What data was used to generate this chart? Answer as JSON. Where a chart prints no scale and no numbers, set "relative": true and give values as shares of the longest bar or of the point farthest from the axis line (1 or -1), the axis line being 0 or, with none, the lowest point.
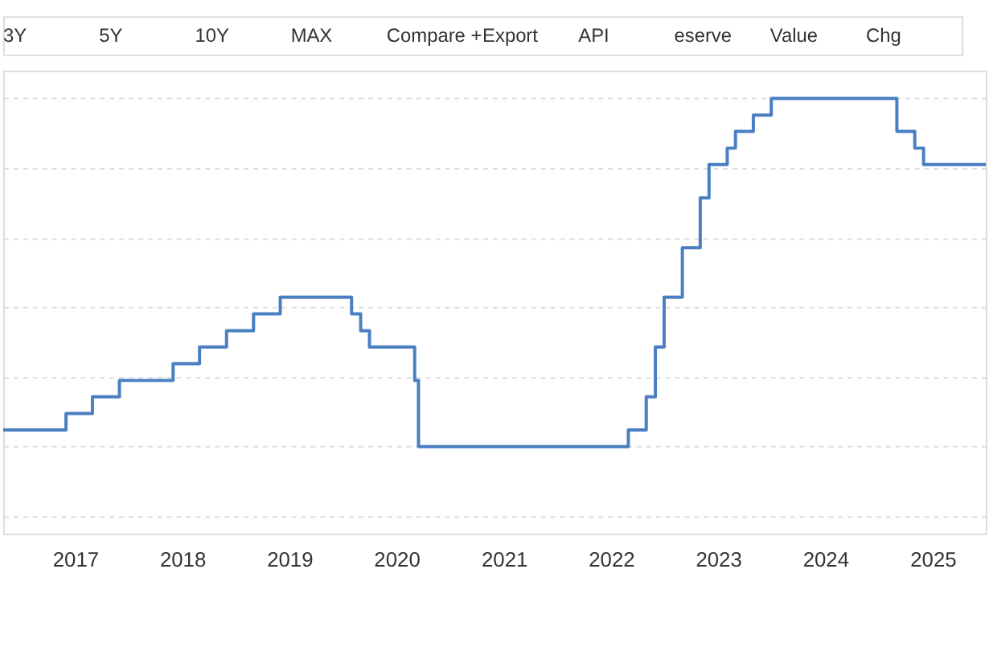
{
  "chart_data": {
    "type": "step",
    "relative": true,
    "x": [
      "2016-05",
      "2016-12",
      "2017-03",
      "2017-06",
      "2017-12",
      "2018-03",
      "2018-06",
      "2018-09",
      "2018-12",
      "2019-08",
      "2019-09",
      "2019-10",
      "2020-03-03",
      "2020-03-16",
      "2022-03",
      "2022-05",
      "2022-06",
      "2022-07",
      "2022-09",
      "2022-11",
      "2022-12",
      "2023-02",
      "2023-03",
      "2023-05",
      "2023-07",
      "2024-09",
      "2024-11",
      "2024-12",
      "2025-07"
    ],
    "series": [
      {
        "color": "#4a7fc1",
        "values": [
          0.048,
          0.095,
          0.143,
          0.19,
          0.238,
          0.286,
          0.333,
          0.381,
          0.429,
          0.381,
          0.333,
          0.286,
          0.19,
          0,
          0.048,
          0.143,
          0.286,
          0.429,
          0.571,
          0.714,
          0.81,
          0.857,
          0.905,
          0.952,
          1,
          0.905,
          0.857,
          0.81,
          0.81
        ]
      }
    ],
    "xlim": [
      "2016-05",
      "2025-07"
    ],
    "xticks": [
      "2017",
      "2018",
      "2019",
      "2020",
      "2021",
      "2022",
      "2023",
      "2024",
      "2025"
    ],
    "grid": "y",
    "marker": "none",
    "line_style": "solid",
    "annotations": [
      "3Y",
      "5Y",
      "10Y",
      "MAX",
      "Compare +",
      "Export",
      "API",
      "eserve",
      "Value",
      "Chg"
    ]
  }
}
